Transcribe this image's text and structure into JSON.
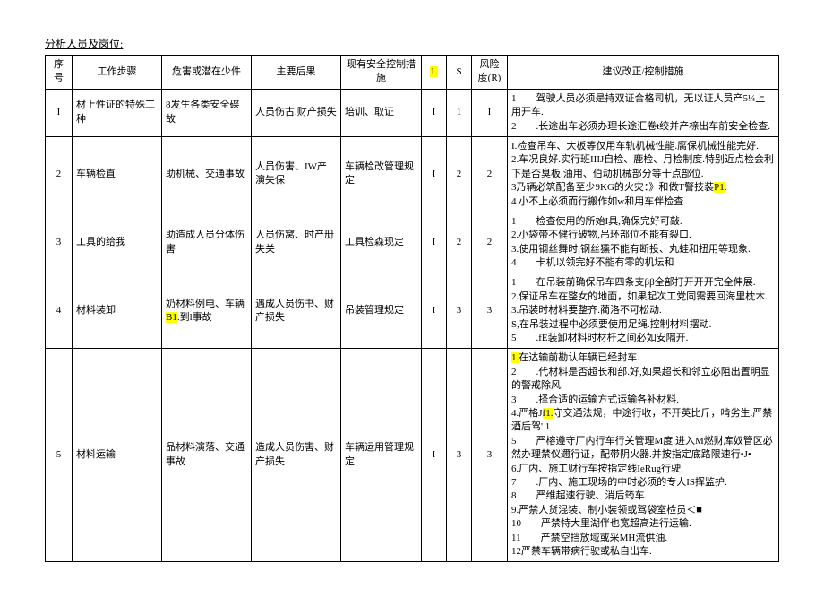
{
  "header": "分析人员及岗位:",
  "columns": {
    "seq": "序号",
    "step": "工作步骤",
    "hazard": "危害或潜在少件",
    "conseq": "主要后果",
    "ctrl": "现有安全控制措施",
    "l": "1.",
    "s": "S",
    "r": "风险度(R)",
    "rec": "建议改正/控制措施"
  },
  "rows": [
    {
      "seq": "I",
      "step": "材上性证的特殊工种",
      "hazard_pre": "8",
      "hazard_post": "发生各类安全碟故",
      "conseq": "人员伤古.财产损失",
      "ctrl": "培训、取证",
      "l": "I",
      "s": "1",
      "r": "I",
      "rec": [
        {
          "num": "1",
          "text": "驾驶人员必须是持双证合格司机，无以证人员产5¼上用开车."
        },
        {
          "num": "2",
          "text": ".长途出车必须办理长途汇卷t绞并产榇出车前安全检查."
        }
      ]
    },
    {
      "seq": "2",
      "step": "车辆检直",
      "hazard": "助机械、交通事故",
      "conseq": "人员伤害、IW产演失保",
      "ctrl": "车辆检改管理规定",
      "l": "I",
      "s": "2",
      "r": "2",
      "rec": [
        {
          "text": "I.检查吊车、大板等仅用车轨机械性能.腐保机械性能完好."
        },
        {
          "text": "2.车况良好.实行班IIIJ自检、鹿检、月检制度.特别近点检会利下是否臭板.油用、伯动机械部分等十点部位."
        },
        {
          "pre": "3乃辆必筑配备至少9KG的火灾：》和做T警技装",
          "hl": "P1",
          "post": "."
        },
        {
          "text": "4.小不上必须而行搬作如w和用车伴检查"
        }
      ]
    },
    {
      "seq": "3",
      "step": "工具的给我",
      "hazard": "助造成人员分体伤害",
      "conseq": "人员伤窝、时产册失关",
      "ctrl": "工具检森现定",
      "l": "I",
      "s": "2",
      "r": "2",
      "rec": [
        {
          "num": "1",
          "text": "检查使用的所始I具,确保完好可敲."
        },
        {
          "text": "2.小袋带不健行破物,吊环部位不能有裂口."
        },
        {
          "text": "3.使用钢丝舞时,钢丝獯不能有断投、丸蛙和扭用等现象."
        },
        {
          "num": "4",
          "text": "卡机以领完好不能有零的机坛和"
        }
      ]
    },
    {
      "seq": "4",
      "step": "材料装卸",
      "hazard_pre": "奶材料例电、车辆",
      "hazard_hl": "B1",
      "hazard_post": ".到l事故",
      "conseq": "遇成人员伤书、财产损失",
      "ctrl": "吊装管理规定",
      "l": "I",
      "s": "3",
      "r": "3",
      "rec": [
        {
          "num": "1",
          "text": "在吊装前确保吊车四条支ββ全部打开开开完全伸展."
        },
        {
          "text": "2.保证吊车在整女的地面，如果起次工党同需要回海里枕木."
        },
        {
          "text": "3.吊装时材料要整齐.蔺洛不可松动."
        },
        {
          "text": "S,在吊装过程中必须要使用足绳.控制材料摆动."
        },
        {
          "num": "5",
          "text": ".fE装卸材料时材杆之间必如安隔开."
        }
      ]
    },
    {
      "seq": "5",
      "step": "材料运输",
      "hazard": "品材料演落、交通事故",
      "conseq": "造成人员伤害、财产损失",
      "ctrl": "车辆运用管理规定",
      "l": "I",
      "s": "3",
      "r": "3",
      "rec": [
        {
          "hl": "1.",
          "post": "在达输前勘认年辆已经封车."
        },
        {
          "num": "2",
          "text": ".代材料是否超长和部.好,如果超长和邻立必阻出置明显的警戒除风."
        },
        {
          "num": "3",
          "text": ".择合适的运输方式运输各补材料."
        },
        {
          "pre": "4.严格J",
          "hl": "f1.",
          "post": "守交通法规，中途行收，不开英比斤，啃劣生.严禁酒后驾' 1"
        },
        {
          "num": "5",
          "text": "严榕遵守厂内行车行关管理M度.进入M燃财库奴管区必然办理禁仪邇行证，配带阴火器.并按指定底路限速行•J•"
        },
        {
          "text": "6.厂内、施工财行车按指定线IeRug行驶."
        },
        {
          "num": "7",
          "text": ".厂内、施工现场的中时必须的专人IS挥监护."
        },
        {
          "num": "8",
          "text": "严维超速行驶、消后筠车."
        },
        {
          "text": "9.严禁人货混装、制小装领或驾袋室检员＜■"
        },
        {
          "num": "10",
          "text": "严禁特大里湖伴也宽超高进行运输."
        },
        {
          "num": "11",
          "text": "产禁空挡放域或采MH流供油."
        },
        {
          "text": "12严禁车辆带病行驶或私自出车."
        }
      ]
    }
  ]
}
